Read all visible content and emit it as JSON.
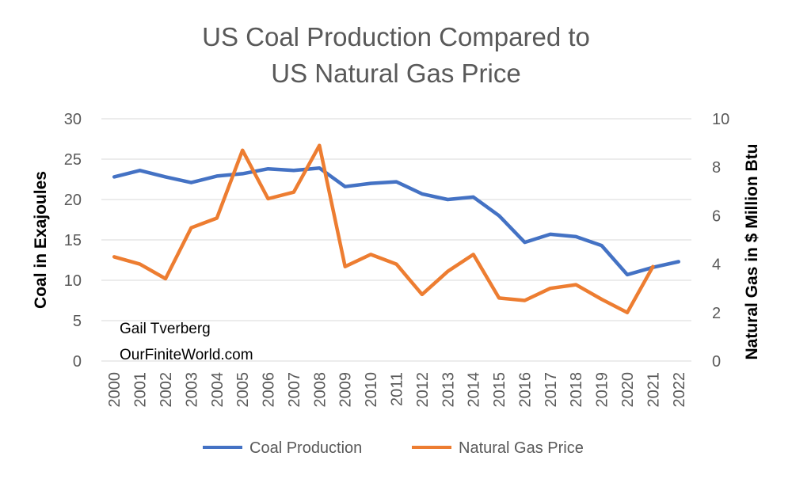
{
  "chart_data": {
    "type": "line",
    "title_lines": [
      "US Coal Production Compared to",
      "US Natural Gas Price"
    ],
    "x": [
      "2000",
      "2001",
      "2002",
      "2003",
      "2004",
      "2005",
      "2006",
      "2007",
      "2008",
      "2009",
      "2010",
      "2011",
      "2012",
      "2013",
      "2014",
      "2015",
      "2016",
      "2017",
      "2018",
      "2019",
      "2020",
      "2021",
      "2022"
    ],
    "series": [
      {
        "name": "Coal Production",
        "axis": "left",
        "color": "#4472C4",
        "values": [
          22.8,
          23.6,
          22.8,
          22.1,
          22.9,
          23.2,
          23.8,
          23.6,
          23.9,
          21.6,
          22.0,
          22.2,
          20.7,
          20.0,
          20.3,
          18.0,
          14.7,
          15.7,
          15.4,
          14.3,
          10.7,
          11.6,
          12.3
        ]
      },
      {
        "name": "Natural Gas Price",
        "axis": "right",
        "color": "#ED7D31",
        "values": [
          4.3,
          4.0,
          3.4,
          5.5,
          5.9,
          8.7,
          6.7,
          6.97,
          8.9,
          3.9,
          4.4,
          4.0,
          2.75,
          3.7,
          4.4,
          2.6,
          2.5,
          3.0,
          3.15,
          2.55,
          2.0,
          3.9,
          null
        ]
      }
    ],
    "ylabel": "Coal in Exajoules",
    "ylim": [
      0,
      30
    ],
    "yticks": [
      0,
      5,
      10,
      15,
      20,
      25,
      30
    ],
    "y2label": "Natural Gas in $ Million Btu",
    "y2lim": [
      0,
      10
    ],
    "y2ticks": [
      0,
      2,
      4,
      6,
      8,
      10
    ],
    "grid": true,
    "legend": "bottom",
    "annotation": [
      "Gail Tverberg",
      "OurFiniteWorld.com"
    ]
  }
}
